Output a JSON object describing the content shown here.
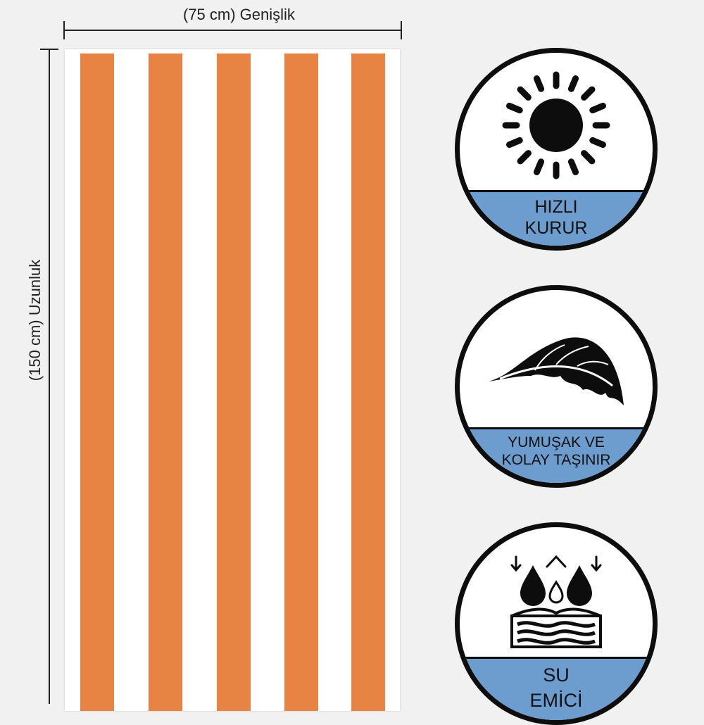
{
  "dimensions": {
    "width_label": "(75 cm) Genişlik",
    "height_label": "(150 cm) Uzunluk"
  },
  "towel": {
    "stripe_color": "#e88443",
    "base_color": "#ffffff",
    "stripe_count": 5
  },
  "features": [
    {
      "icon": "sun-icon",
      "lines": [
        "HIZLI",
        "KURUR"
      ]
    },
    {
      "icon": "feather-icon",
      "lines": [
        "YUMUŞAK VE",
        "KOLAY TAŞINIR"
      ]
    },
    {
      "icon": "water-absorb-icon",
      "lines": [
        "SU",
        "EMİCİ"
      ]
    }
  ],
  "colors": {
    "band": "#6d9ccf",
    "outline": "#0d0d0d",
    "background": "#f1f1f1"
  }
}
